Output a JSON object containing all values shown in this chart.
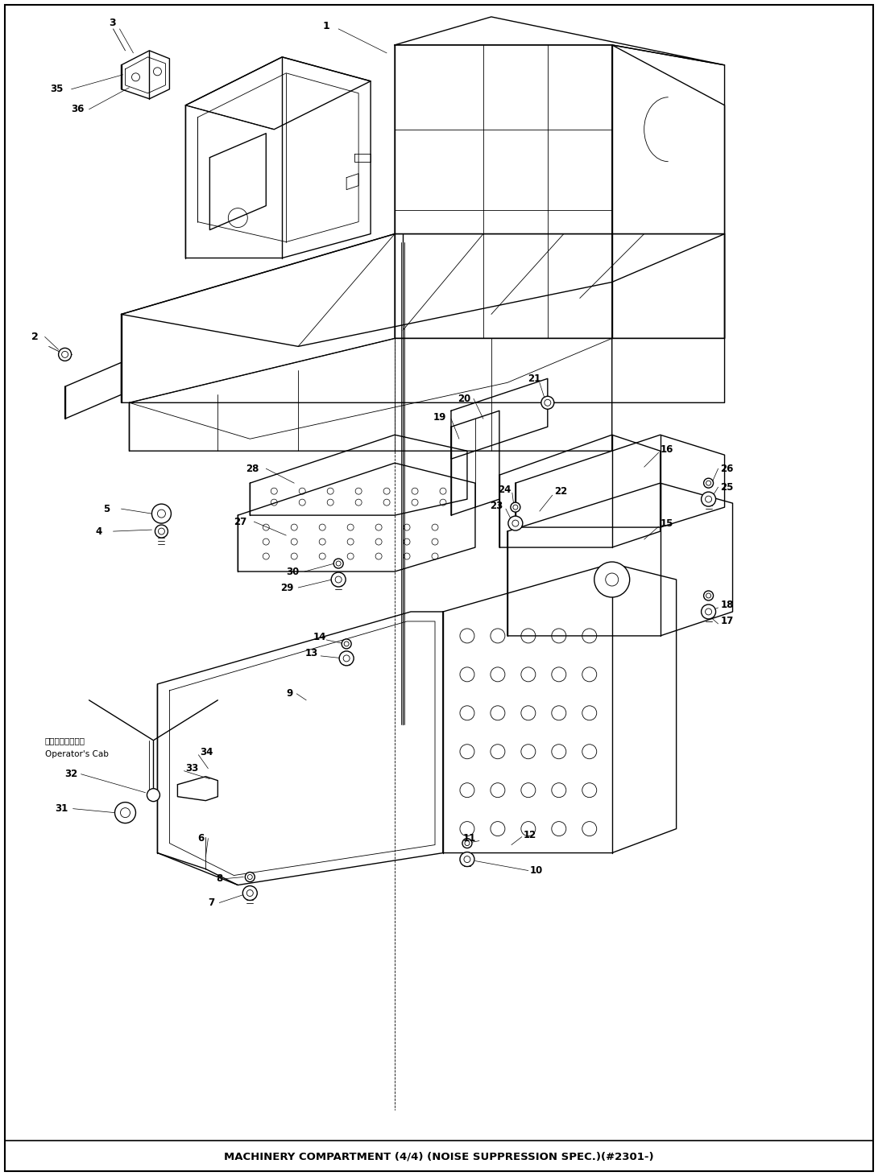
{
  "title": "MACHINERY COMPARTMENT (4/4) (NOISE SUPPRESSION SPEC.)(#2301-)",
  "title_fontsize": 9.5,
  "bg_color": "#ffffff",
  "line_color": "#000000",
  "fig_width": 10.9,
  "fig_height": 14.61,
  "dpi": 100
}
